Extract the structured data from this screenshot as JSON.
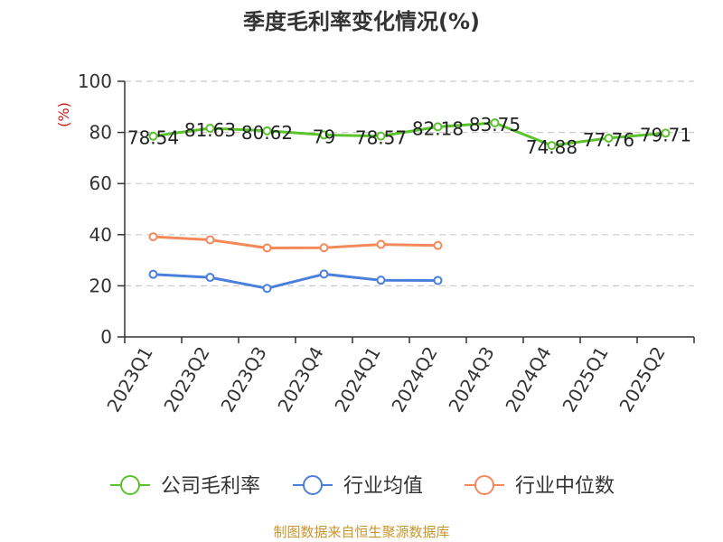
{
  "chart_data": {
    "type": "line",
    "title": "季度毛利率变化情况(%)",
    "ylabel": "(%)",
    "ylim": [
      0,
      100
    ],
    "yticks": [
      0,
      20,
      40,
      60,
      80,
      100
    ],
    "grid": true,
    "legend_position": "bottom",
    "categories": [
      "2023Q1",
      "2023Q2",
      "2023Q3",
      "2023Q4",
      "2024Q1",
      "2024Q2",
      "2024Q3",
      "2024Q4",
      "2025Q1",
      "2025Q2"
    ],
    "series": [
      {
        "name": "公司毛利率",
        "color": "#5ac32c",
        "values": [
          78.54,
          81.63,
          80.62,
          79,
          78.57,
          82.18,
          83.75,
          74.88,
          77.76,
          79.71
        ],
        "labels": [
          "78.54",
          "81.63",
          "80.62",
          "79",
          "78.57",
          "82.18",
          "83.75",
          "74.88",
          "77.76",
          "79.71"
        ]
      },
      {
        "name": "行业均值",
        "color": "#4a7fdb",
        "values": [
          24.5,
          23.3,
          19.0,
          24.6,
          22.2,
          22.1,
          null,
          null,
          null,
          null
        ]
      },
      {
        "name": "行业中位数",
        "color": "#f5895a",
        "values": [
          39.2,
          38.0,
          34.8,
          34.9,
          36.2,
          35.8,
          null,
          null,
          null,
          null
        ]
      }
    ],
    "source": "制图数据来自恒生聚源数据库"
  },
  "colors": {
    "axis": "#333333",
    "grid": "#cccccc",
    "ylabel": "#d01818",
    "source": "#c8962e"
  }
}
